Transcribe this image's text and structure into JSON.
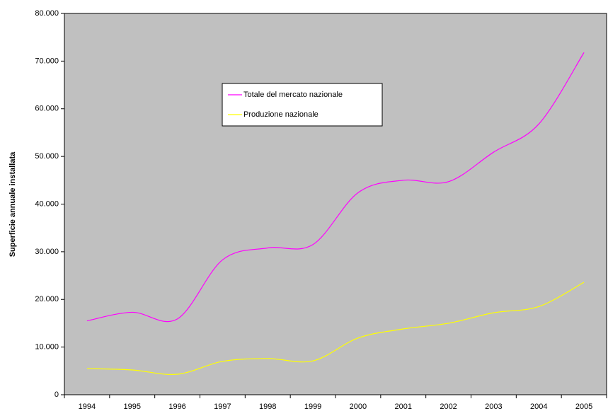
{
  "chart_data": {
    "type": "line",
    "y_label": "Superficie annuale installata",
    "categories": [
      "1994",
      "1995",
      "1996",
      "1997",
      "1998",
      "1999",
      "2000",
      "2001",
      "2002",
      "2003",
      "2004",
      "2005"
    ],
    "series": [
      {
        "name": "Totale del mercato nazionale",
        "color": "#ff00ff",
        "values": [
          15500,
          17300,
          15900,
          28300,
          30800,
          31500,
          42400,
          45000,
          44700,
          50900,
          56800,
          71800
        ]
      },
      {
        "name": "Produzione nazionale",
        "color": "#ffff00",
        "values": [
          5500,
          5200,
          4300,
          7000,
          7600,
          7100,
          11900,
          13800,
          15000,
          17200,
          18500,
          23600
        ]
      }
    ],
    "ylim": [
      0,
      80000
    ],
    "yticks": [
      0,
      {
        "value": 10000,
        "label": "10.000"
      },
      {
        "value": 20000,
        "label": "20.000"
      },
      {
        "value": 30000,
        "label": "30.000"
      },
      {
        "value": 40000,
        "label": "40.000"
      },
      {
        "value": 50000,
        "label": "50.000"
      },
      {
        "value": 60000,
        "label": "60.000"
      },
      {
        "value": 70000,
        "label": "70.000"
      },
      {
        "value": 80000,
        "label": "80.000"
      }
    ],
    "smooth": true,
    "plot_background": "#c0c0c0"
  }
}
